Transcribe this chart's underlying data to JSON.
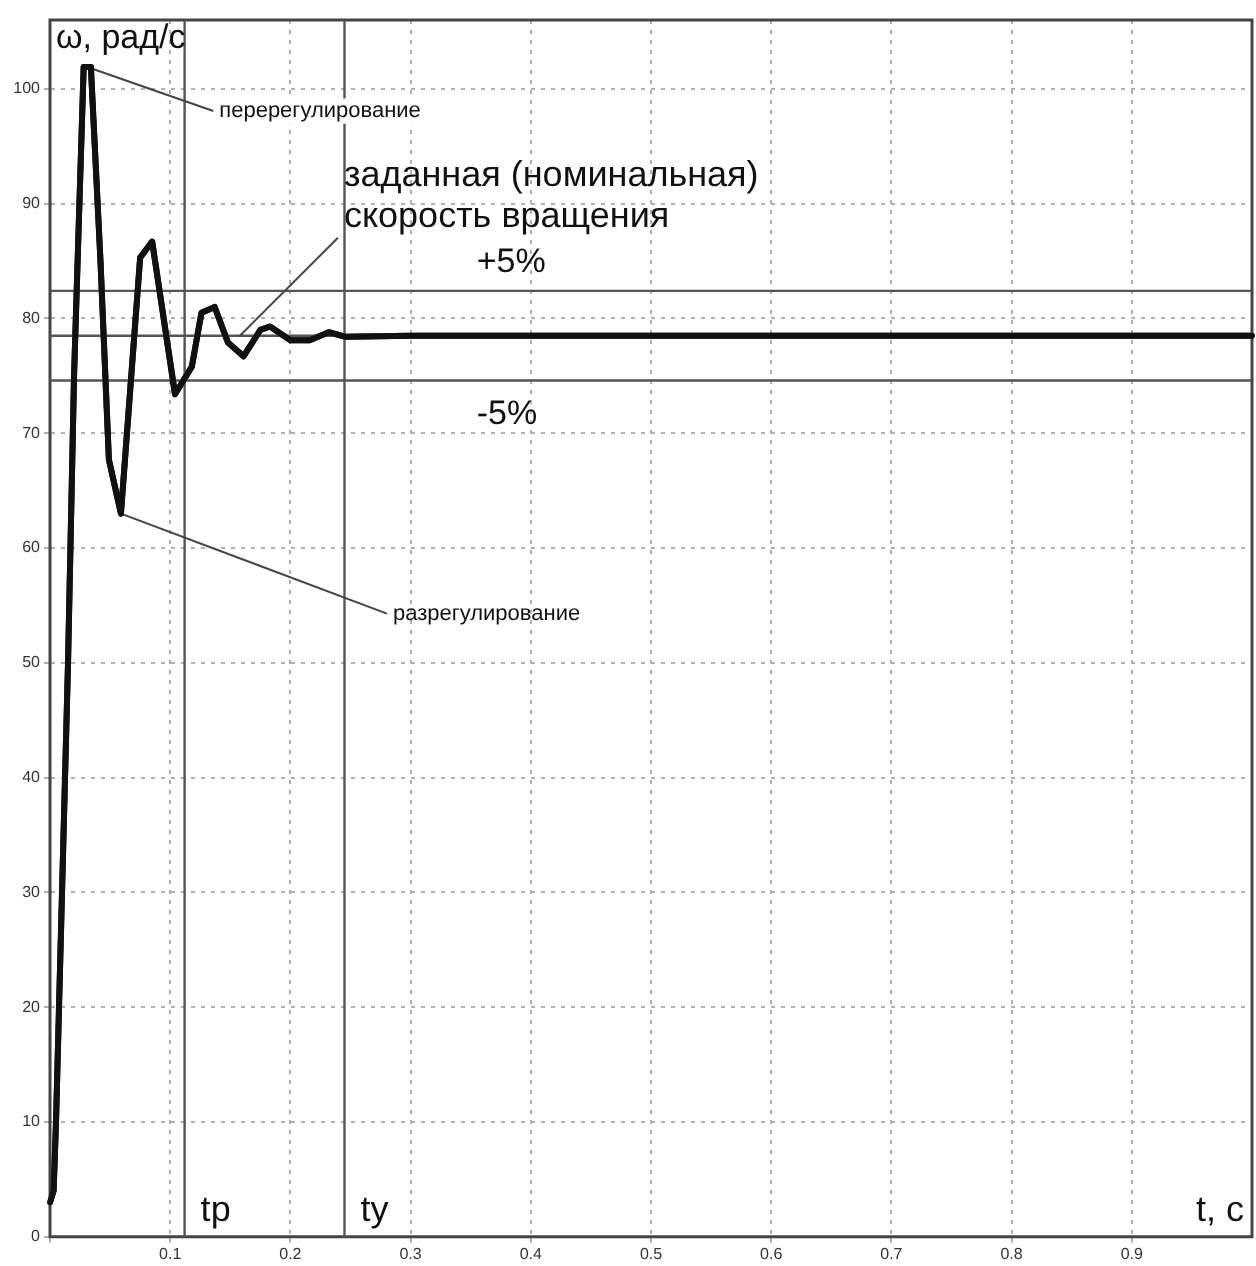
{
  "chart_data": {
    "type": "line",
    "xlabel": "t, с",
    "ylabel": "ω, рад/с",
    "series": [
      {
        "color": "#111111",
        "x": [
          0,
          0.003,
          0.005,
          0.01,
          0.015,
          0.02,
          0.028,
          0.034,
          0.042,
          0.049,
          0.059,
          0.075,
          0.085,
          0.104,
          0.118,
          0.126,
          0.137,
          0.148,
          0.161,
          0.175,
          0.183,
          0.2,
          0.216,
          0.232,
          0.246,
          0.3,
          0.5,
          0.75,
          1
        ],
        "values": [
          3,
          4,
          10,
          30,
          50,
          75,
          101.9,
          101.9,
          85,
          67.7,
          63,
          85.3,
          86.7,
          73.4,
          75.8,
          80.5,
          81,
          77.9,
          76.7,
          79,
          79.3,
          78.1,
          78.1,
          78.8,
          78.4,
          78.5,
          78.5,
          78.5,
          78.5
        ]
      }
    ],
    "xlim": [
      0,
      1
    ],
    "ylim": [
      0,
      106
    ],
    "xticks": [
      {
        "value": 0,
        "label": null
      },
      0.1,
      0.2,
      0.3,
      0.4,
      0.5,
      0.6,
      0.7,
      0.8,
      0.9
    ],
    "yticks": [
      0,
      10,
      20,
      30,
      40,
      50,
      60,
      70,
      80,
      90,
      100
    ],
    "grid": true,
    "legend": false,
    "marker": "none",
    "line_style": "solid",
    "ref_lines": [
      {
        "axis": "y",
        "value": 82.4,
        "color": "#555555"
      },
      {
        "axis": "y",
        "value": 78.5,
        "color": "#555555"
      },
      {
        "axis": "y",
        "value": 74.6,
        "color": "#555555"
      },
      {
        "axis": "x",
        "value": 0.112,
        "label": "tр",
        "color": "#555555"
      },
      {
        "axis": "x",
        "value": 0.245,
        "label": "tу",
        "color": "#555555"
      }
    ],
    "annotations": [
      {
        "text": "перерегулирование",
        "x": 0.031,
        "y": 101.9
      },
      {
        "text": "заданная (номинальная)\nскорость вращения",
        "x": 0.158,
        "y": 78.5
      },
      {
        "text": "разрегулирование",
        "x": 0.059,
        "y": 63
      },
      {
        "text": "+5%",
        "x": 0.355,
        "y": 82.4
      },
      {
        "text": "-5%",
        "x": 0.355,
        "y": 74.6
      }
    ]
  }
}
